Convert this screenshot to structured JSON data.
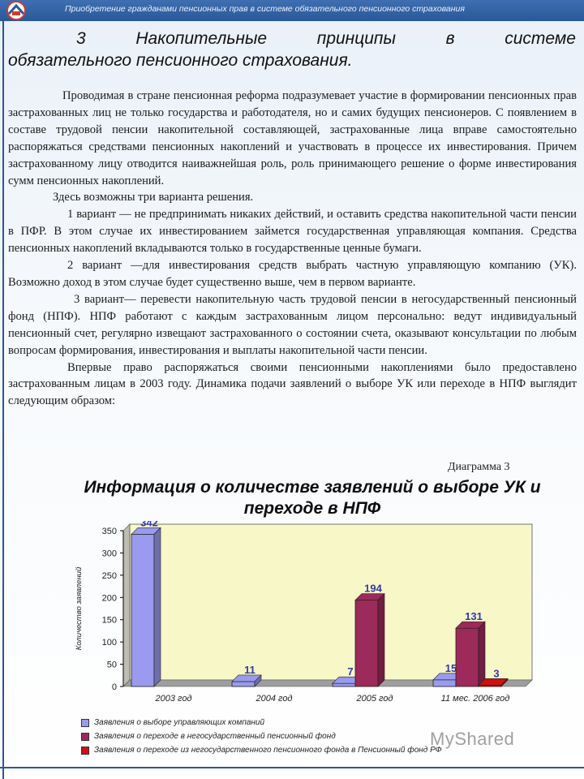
{
  "header": {
    "text": "Приобретение гражданами пенсионных прав в системе обязательного пенсионного страхования"
  },
  "heading": {
    "line1_words": [
      "3",
      "Накопительные",
      "принципы",
      "в",
      "системе"
    ],
    "line2": "обязательного пенсионного страхования."
  },
  "paragraphs": [
    "Проводимая в стране пенсионная реформа подразумевает участие в формировании пенсионных прав застрахованных лиц не только государства и работодателя, но и самих будущих пенсионеров. С появлением в составе трудовой пенсии накопительной составляющей, застрахованные лица вправе самостоятельно распоряжаться средствами пенсионных накоплений и участвовать в процессе их инвестирования. Причем застрахованному лицу отводится наиважнейшая роль, роль принимающего решение о форме инвестирования сумм пенсионных накоплений.",
    "Здесь возможны три варианта решения.",
    "1 вариант — не предпринимать никаких действий, и оставить средства накопительной части пенсии в ПФР. В этом случае их инвестированием займется государственная управляющая компания. Средства пенсионных накоплений вкладываются только в государственные ценные бумаги.",
    "2 вариант —для инвестирования средств выбрать частную управляющую компанию (УК). Возможно доход в этом случае будет существенно выше, чем в первом варианте.",
    "3 вариант— перевести накопительную часть трудовой пенсии в негосударственный пенсионный фонд (НПФ). НПФ работают с каждым застрахованным лицом персонально: ведут индивидуальный пенсионный счет, регулярно извещают застрахованного о состоянии счета, оказывают консультации по любым вопросам формирования, инвестирования и выплаты накопительной части пенсии.",
    "Впервые право распоряжаться своими пенсионными накоплениями было предоставлено застрахованным лицам в 2003 году. Динамика подачи заявлений о выборе УК или переходе в НПФ выглядит следующим образом:"
  ],
  "diagram_label": "Диаграмма 3",
  "chart_title_line1": "Информация о количестве заявлений о выборе УК и",
  "chart_title_line2": "переходе в НПФ",
  "watermark": "MyShared",
  "chart_data": {
    "type": "bar",
    "title": "Информация о количестве заявлений о выборе УК и переходе в НПФ",
    "ylabel": "Количество заявлений",
    "xlabel": "",
    "categories": [
      "2003 год",
      "2004 год",
      "2005 год",
      "11 мес. 2006 год"
    ],
    "ylim": [
      0,
      350
    ],
    "yticks": [
      0,
      50,
      100,
      150,
      200,
      250,
      300,
      350
    ],
    "grid": false,
    "series": [
      {
        "name": "Заявления о выборе управляющих компаний",
        "values": [
          342,
          11,
          7,
          15
        ],
        "color": "#9a9aee"
      },
      {
        "name": "Заявления о переходе в негосударственный пенсионный фонд",
        "values": [
          null,
          null,
          194,
          131
        ],
        "color": "#9c2a5a"
      },
      {
        "name": "Заявления о переходе из негосударственного пенсионного фонда в Пенсионный фонд РФ",
        "values": [
          null,
          null,
          null,
          3
        ],
        "color": "#d01010"
      }
    ],
    "legend_position": "bottom"
  }
}
